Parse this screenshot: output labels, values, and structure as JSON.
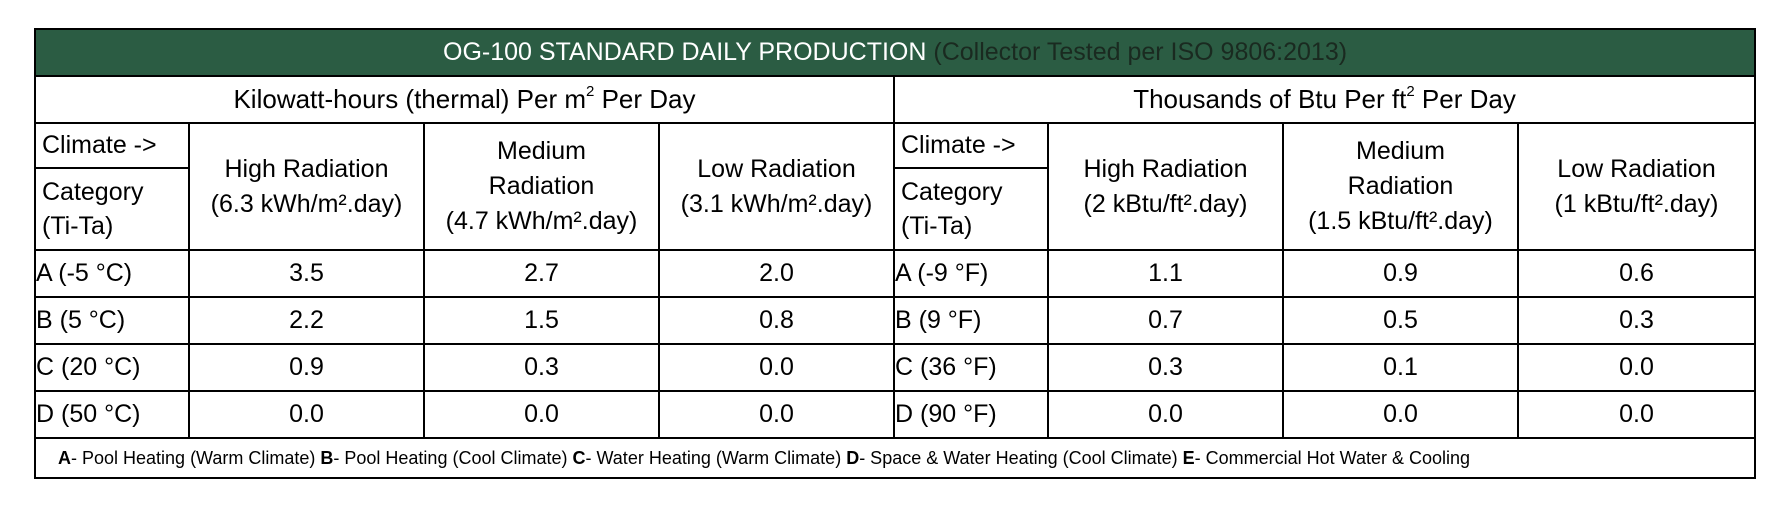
{
  "title": {
    "main": "OG-100 STANDARD DAILY PRODUCTION",
    "sub": " (Collector Tested per ISO 9806:2013)"
  },
  "metric_unit": {
    "before": "Kilowatt-hours (thermal) Per m",
    "sup": "2",
    "after": " Per Day"
  },
  "imperial_unit": {
    "before": "Thousands of Btu Per ft",
    "sup": "2",
    "after": " Per Day"
  },
  "climate_label": "Climate ->",
  "category_label": "Category",
  "category_sublabel": "(Ti-Ta)",
  "metric_headers": [
    {
      "line1": "High Radiation",
      "line2": "(6.3 kWh/m².day)"
    },
    {
      "line1": "Medium",
      "line2": "Radiation",
      "line3": "(4.7 kWh/m².day)"
    },
    {
      "line1": "Low Radiation",
      "line2": "(3.1 kWh/m².day)"
    }
  ],
  "imperial_headers": [
    {
      "line1": "High Radiation",
      "line2": "(2 kBtu/ft².day)"
    },
    {
      "line1": "Medium",
      "line2": "Radiation",
      "line3": "(1.5 kBtu/ft².day)"
    },
    {
      "line1": "Low Radiation",
      "line2": "(1 kBtu/ft².day)"
    }
  ],
  "rows": [
    {
      "metric_label": "A (-5 °C)",
      "metric": [
        "3.5",
        "2.7",
        "2.0"
      ],
      "imperial_label": "A (-9 °F)",
      "imperial": [
        "1.1",
        "0.9",
        "0.6"
      ]
    },
    {
      "metric_label": "B (5 °C)",
      "metric": [
        "2.2",
        "1.5",
        "0.8"
      ],
      "imperial_label": "B (9 °F)",
      "imperial": [
        "0.7",
        "0.5",
        "0.3"
      ]
    },
    {
      "metric_label": "C (20 °C)",
      "metric": [
        "0.9",
        "0.3",
        "0.0"
      ],
      "imperial_label": "C (36 °F)",
      "imperial": [
        "0.3",
        "0.1",
        "0.0"
      ]
    },
    {
      "metric_label": "D (50 °C)",
      "metric": [
        "0.0",
        "0.0",
        "0.0"
      ],
      "imperial_label": "D (90 °F)",
      "imperial": [
        "0.0",
        "0.0",
        "0.0"
      ]
    }
  ],
  "legend": [
    {
      "key": "A",
      "text": "- Pool Heating (Warm Climate) "
    },
    {
      "key": "B",
      "text": "- Pool Heating (Cool Climate) "
    },
    {
      "key": "C",
      "text": "- Water Heating (Warm Climate) "
    },
    {
      "key": "D",
      "text": "- Space & Water Heating (Cool Climate) "
    },
    {
      "key": "E",
      "text": "- Commercial Hot Water & Cooling"
    }
  ],
  "colors": {
    "title_bg": "#2b5c43",
    "title_text": "#ffffff",
    "title_subtext": "#1a2a20",
    "border": "#000000"
  }
}
